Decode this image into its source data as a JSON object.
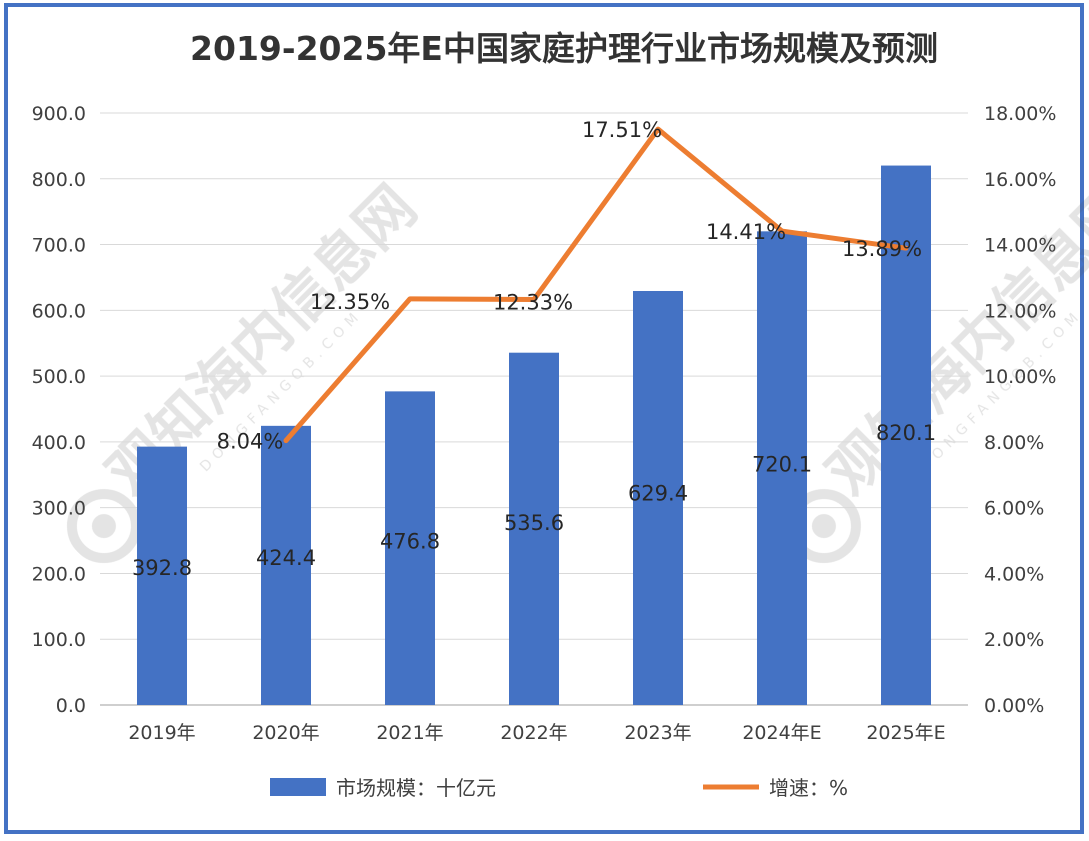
{
  "chart_data": {
    "type": "bar",
    "title": "2019-2025年E中国家庭护理行业市场规模及预测",
    "categories": [
      "2019年",
      "2020年",
      "2021年",
      "2022年",
      "2023年",
      "2024年E",
      "2025年E"
    ],
    "series": [
      {
        "name": "市场规模：十亿元",
        "type": "bar",
        "axis": "left",
        "color": "#4472c4",
        "values": [
          392.8,
          424.4,
          476.8,
          535.6,
          629.4,
          720.1,
          820.1
        ],
        "labels": [
          "392.8",
          "424.4",
          "476.8",
          "535.6",
          "629.4",
          "720.1",
          "820.1"
        ]
      },
      {
        "name": "增速：%",
        "type": "line",
        "axis": "right",
        "color": "#ed7d31",
        "values": [
          null,
          8.04,
          12.35,
          12.33,
          17.51,
          14.41,
          13.89
        ],
        "labels": [
          "",
          "8.04%",
          "12.35%",
          "12.33%",
          "17.51%",
          "14.41%",
          "13.89%"
        ]
      }
    ],
    "y_left": {
      "ylim": [
        0,
        900
      ],
      "ticks": [
        "0.0",
        "100.0",
        "200.0",
        "300.0",
        "400.0",
        "500.0",
        "600.0",
        "700.0",
        "800.0",
        "900.0"
      ]
    },
    "y_right": {
      "ylim": [
        0,
        18
      ],
      "ticks": [
        "0.00%",
        "2.00%",
        "4.00%",
        "6.00%",
        "8.00%",
        "10.00%",
        "12.00%",
        "14.00%",
        "16.00%",
        "18.00%"
      ]
    },
    "grid": true,
    "legend": "bottom"
  },
  "watermark": {
    "text": "观知海内信息网",
    "subtext": "DONGFANGQB.COM"
  }
}
